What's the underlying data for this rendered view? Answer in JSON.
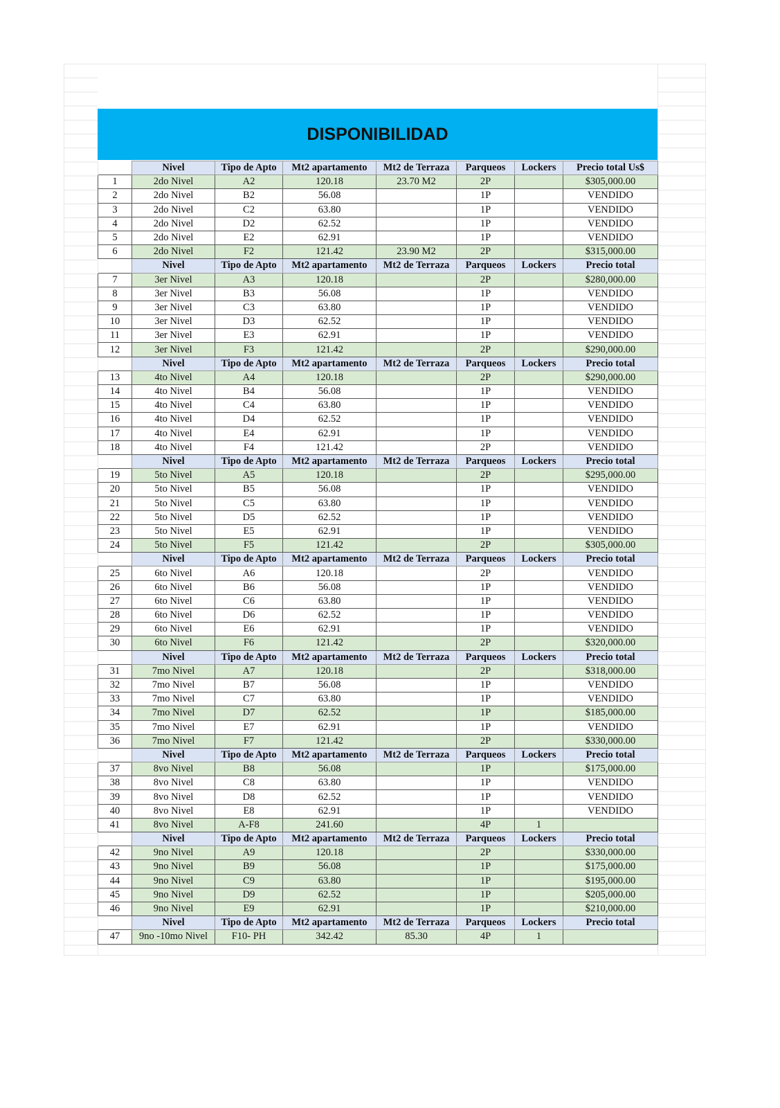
{
  "title": "DISPONIBILIDAD",
  "colors": {
    "banner": "#00b0f0",
    "header": "#dae3f3",
    "available": "#d9ead3"
  },
  "columns_first": [
    "Nivel",
    "Tipo de Apto",
    "Mt2 apartamento",
    "Mt2 de Terraza",
    "Parqueos",
    "Lockers",
    "Precio total Us$"
  ],
  "columns": [
    "Nivel",
    "Tipo de Apto",
    "Mt2 apartamento",
    "Mt2 de Terraza",
    "Parqueos",
    "Lockers",
    "Precio total"
  ],
  "groups": [
    {
      "rows": [
        [
          "1",
          "2do Nivel",
          "A2",
          "120.18",
          "23.70 M2",
          "2P",
          "",
          "$305,000.00",
          true
        ],
        [
          "2",
          "2do Nivel",
          "B2",
          "56.08",
          "",
          "1P",
          "",
          "VENDIDO",
          false
        ],
        [
          "3",
          "2do Nivel",
          "C2",
          "63.80",
          "",
          "1P",
          "",
          "VENDIDO",
          false
        ],
        [
          "4",
          "2do Nivel",
          "D2",
          "62.52",
          "",
          "1P",
          "",
          "VENDIDO",
          false
        ],
        [
          "5",
          "2do Nivel",
          "E2",
          "62.91",
          "",
          "1P",
          "",
          "VENDIDO",
          false
        ],
        [
          "6",
          "2do Nivel",
          "F2",
          "121.42",
          "23.90 M2",
          "2P",
          "",
          "$315,000.00",
          true
        ]
      ]
    },
    {
      "rows": [
        [
          "7",
          "3er  Nivel",
          "A3",
          "120.18",
          "",
          "2P",
          "",
          "$280,000.00",
          true
        ],
        [
          "8",
          "3er  Nivel",
          "B3",
          "56.08",
          "",
          "1P",
          "",
          "VENDIDO",
          false
        ],
        [
          "9",
          "3er  Nivel",
          "C3",
          "63.80",
          "",
          "1P",
          "",
          "VENDIDO",
          false
        ],
        [
          "10",
          "3er  Nivel",
          "D3",
          "62.52",
          "",
          "1P",
          "",
          "VENDIDO",
          false
        ],
        [
          "11",
          "3er  Nivel",
          "E3",
          "62.91",
          "",
          "1P",
          "",
          "VENDIDO",
          false
        ],
        [
          "12",
          "3er  Nivel",
          "F3",
          "121.42",
          "",
          "2P",
          "",
          "$290,000.00",
          true
        ]
      ]
    },
    {
      "rows": [
        [
          "13",
          "4to  Nivel",
          "A4",
          "120.18",
          "",
          "2P",
          "",
          "$290,000.00",
          true
        ],
        [
          "14",
          "4to  Nivel",
          "B4",
          "56.08",
          "",
          "1P",
          "",
          "VENDIDO",
          false
        ],
        [
          "15",
          "4to  Nivel",
          "C4",
          "63.80",
          "",
          "1P",
          "",
          "VENDIDO",
          false
        ],
        [
          "16",
          "4to  Nivel",
          "D4",
          "62.52",
          "",
          "1P",
          "",
          "VENDIDO",
          false
        ],
        [
          "17",
          "4to  Nivel",
          "E4",
          "62.91",
          "",
          "1P",
          "",
          "VENDIDO",
          false
        ],
        [
          "18",
          "4to  Nivel",
          "F4",
          "121.42",
          "",
          "2P",
          "",
          "VENDIDO",
          false
        ]
      ]
    },
    {
      "rows": [
        [
          "19",
          "5to  Nivel",
          "A5",
          "120.18",
          "",
          "2P",
          "",
          "$295,000.00",
          true
        ],
        [
          "20",
          "5to  Nivel",
          "B5",
          "56.08",
          "",
          "1P",
          "",
          "VENDIDO",
          false
        ],
        [
          "21",
          "5to  Nivel",
          "C5",
          "63.80",
          "",
          "1P",
          "",
          "VENDIDO",
          false
        ],
        [
          "22",
          "5to  Nivel",
          "D5",
          "62.52",
          "",
          "1P",
          "",
          "VENDIDO",
          false
        ],
        [
          "23",
          "5to  Nivel",
          "E5",
          "62.91",
          "",
          "1P",
          "",
          "VENDIDO",
          false
        ],
        [
          "24",
          "5to  Nivel",
          "F5",
          "121.42",
          "",
          "2P",
          "",
          "$305,000.00",
          true
        ]
      ]
    },
    {
      "rows": [
        [
          "25",
          "6to  Nivel",
          "A6",
          "120.18",
          "",
          "2P",
          "",
          "VENDIDO",
          false
        ],
        [
          "26",
          "6to  Nivel",
          "B6",
          "56.08",
          "",
          "1P",
          "",
          "VENDIDO",
          false
        ],
        [
          "27",
          "6to  Nivel",
          "C6",
          "63.80",
          "",
          "1P",
          "",
          "VENDIDO",
          false
        ],
        [
          "28",
          "6to  Nivel",
          "D6",
          "62.52",
          "",
          "1P",
          "",
          "VENDIDO",
          false
        ],
        [
          "29",
          "6to  Nivel",
          "E6",
          "62.91",
          "",
          "1P",
          "",
          "VENDIDO",
          false
        ],
        [
          "30",
          "6to  Nivel",
          "F6",
          "121.42",
          "",
          "2P",
          "",
          "$320,000.00",
          true
        ]
      ]
    },
    {
      "rows": [
        [
          "31",
          "7mo  Nivel",
          "A7",
          "120.18",
          "",
          "2P",
          "",
          "$318,000.00",
          true
        ],
        [
          "32",
          "7mo  Nivel",
          "B7",
          "56.08",
          "",
          "1P",
          "",
          "VENDIDO",
          false
        ],
        [
          "33",
          "7mo  Nivel",
          "C7",
          "63.80",
          "",
          "1P",
          "",
          "VENDIDO",
          false
        ],
        [
          "34",
          "7mo  Nivel",
          "D7",
          "62.52",
          "",
          "1P",
          "",
          "$185,000.00",
          true
        ],
        [
          "35",
          "7mo  Nivel",
          "E7",
          "62.91",
          "",
          "1P",
          "",
          "VENDIDO",
          false
        ],
        [
          "36",
          "7mo  Nivel",
          "F7",
          "121.42",
          "",
          "2P",
          "",
          "$330,000.00",
          true
        ]
      ]
    },
    {
      "rows": [
        [
          "37",
          "8vo  Nivel",
          "B8",
          "56.08",
          "",
          "1P",
          "",
          "$175,000.00",
          true
        ],
        [
          "38",
          "8vo  Nivel",
          "C8",
          "63.80",
          "",
          "1P",
          "",
          "VENDIDO",
          false
        ],
        [
          "39",
          "8vo  Nivel",
          "D8",
          "62.52",
          "",
          "1P",
          "",
          "VENDIDO",
          false
        ],
        [
          "40",
          "8vo  Nivel",
          "E8",
          "62.91",
          "",
          "1P",
          "",
          "VENDIDO",
          false
        ],
        [
          "41",
          "8vo  Nivel",
          "A-F8",
          "241.60",
          "",
          "4P",
          "1",
          "",
          true
        ]
      ]
    },
    {
      "rows": [
        [
          "42",
          "9no  Nivel",
          "A9",
          "120.18",
          "",
          "2P",
          "",
          "$330,000.00",
          true
        ],
        [
          "43",
          "9no  Nivel",
          "B9",
          "56.08",
          "",
          "1P",
          "",
          "$175,000.00",
          true
        ],
        [
          "44",
          "9no  Nivel",
          "C9",
          "63.80",
          "",
          "1P",
          "",
          "$195,000.00",
          true
        ],
        [
          "45",
          "9no  Nivel",
          "D9",
          "62.52",
          "",
          "1P",
          "",
          "$205,000.00",
          true
        ],
        [
          "46",
          "9no  Nivel",
          "E9",
          "62.91",
          "",
          "1P",
          "",
          "$210,000.00",
          true
        ]
      ]
    },
    {
      "rows": [
        [
          "47",
          "9no -10mo Nivel",
          "F10- PH",
          "342.42",
          "85.30",
          "4P",
          "1",
          "",
          true
        ]
      ]
    }
  ]
}
